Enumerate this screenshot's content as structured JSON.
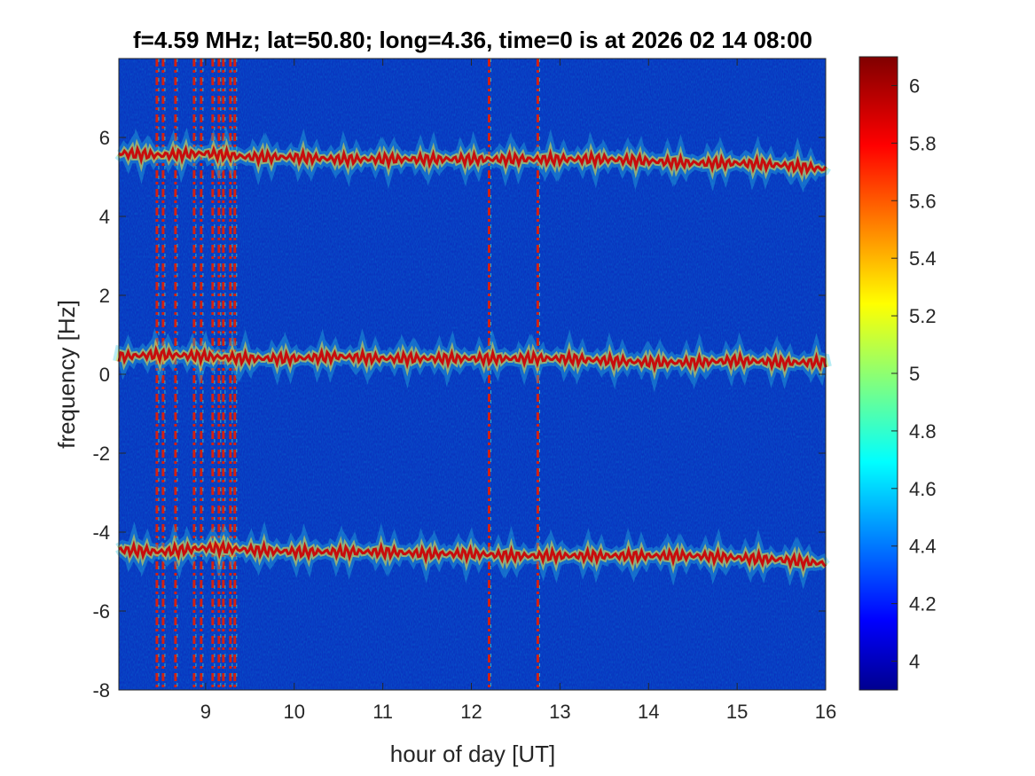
{
  "chart_data": {
    "type": "heatmap",
    "title": "f=4.59 MHz;  lat=50.80; long=4.36, time=0 is at 2026 02 14 08:00",
    "xlabel": "hour of day [UT]",
    "ylabel": "frequency [Hz]",
    "xlim": [
      8.02,
      16.0
    ],
    "ylim": [
      -8,
      8
    ],
    "x_ticks": [
      9,
      10,
      11,
      12,
      13,
      14,
      15,
      16
    ],
    "y_ticks": [
      -8,
      -6,
      -4,
      -2,
      0,
      2,
      4,
      6
    ],
    "colorbar": {
      "colormap": "jet",
      "clim": [
        3.9,
        6.1
      ],
      "ticks": [
        4,
        4.2,
        4.4,
        4.6,
        4.8,
        5,
        5.2,
        5.4,
        5.6,
        5.8,
        6
      ]
    },
    "background_level": 4.0,
    "traces": [
      {
        "x": [
          8.02,
          8.5,
          9.0,
          9.5,
          10.0,
          10.5,
          11.0,
          11.5,
          12.0,
          12.5,
          13.0,
          13.5,
          14.0,
          14.5,
          15.0,
          15.5,
          16.0
        ],
        "y": [
          5.6,
          5.55,
          5.6,
          5.5,
          5.5,
          5.45,
          5.45,
          5.45,
          5.45,
          5.45,
          5.45,
          5.45,
          5.4,
          5.35,
          5.35,
          5.3,
          5.2
        ]
      },
      {
        "x": [
          8.02,
          8.5,
          9.0,
          9.5,
          10.0,
          10.5,
          11.0,
          11.5,
          12.0,
          12.5,
          13.0,
          13.5,
          14.0,
          14.5,
          15.0,
          15.5,
          16.0
        ],
        "y": [
          0.45,
          0.5,
          0.45,
          0.4,
          0.4,
          0.45,
          0.4,
          0.4,
          0.4,
          0.4,
          0.4,
          0.35,
          0.3,
          0.3,
          0.35,
          0.3,
          0.3
        ]
      },
      {
        "x": [
          8.02,
          8.5,
          9.0,
          9.5,
          10.0,
          10.5,
          11.0,
          11.5,
          12.0,
          12.5,
          13.0,
          13.5,
          14.0,
          14.5,
          15.0,
          15.5,
          16.0
        ],
        "y": [
          -4.45,
          -4.5,
          -4.4,
          -4.45,
          -4.5,
          -4.5,
          -4.5,
          -4.55,
          -4.55,
          -4.6,
          -4.6,
          -4.6,
          -4.6,
          -4.6,
          -4.65,
          -4.7,
          -4.8
        ]
      }
    ],
    "vertical_interference_hours": [
      8.45,
      8.52,
      8.66,
      8.87,
      8.95,
      9.08,
      9.15,
      9.2,
      9.28,
      9.33,
      12.2,
      12.75
    ]
  }
}
